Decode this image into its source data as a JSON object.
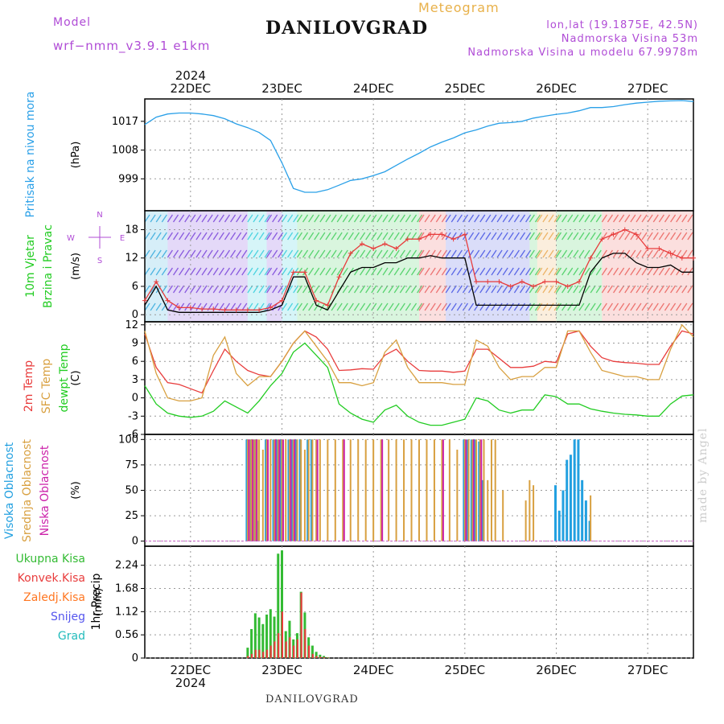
{
  "header": {
    "model_label": "Model",
    "model_name": "wrf−nmm_v3.9.1  e1km",
    "chart_kind": "Meteogram",
    "station": "DANILOVGRAD",
    "lonlat": "lon,lat (19.1875E, 42.5N)",
    "elevation": "Nadmorska Visina 53m",
    "model_elevation": "Nadmorska Visina u modelu 67.9978m",
    "footer_station": "DANILOVGRAD",
    "credit": "made by Angel"
  },
  "colors": {
    "pressure": "#2aa0e8",
    "temp2m": "#e83c3c",
    "sfc": "#d8a040",
    "dewpt": "#22cc22",
    "high_cloud": "#22a0e0",
    "mid_cloud": "#d8a040",
    "low_cloud": "#cc22aa",
    "total_precip": "#33bb33",
    "conv_precip": "#e83c3c",
    "freezing": "#ff7722",
    "snow": "#5555ee",
    "hail": "#22bbbb",
    "title_purple": "#b04cd6"
  },
  "chart_data": [
    {
      "type": "line",
      "id": "pressure",
      "ylabel": "Pritisak na nivou mora",
      "unit": "(hPa)",
      "ylim": [
        989,
        1024
      ],
      "yticks": [
        999,
        1008,
        1017
      ],
      "x": [
        0,
        3,
        6,
        9,
        12,
        15,
        18,
        21,
        24,
        27,
        30,
        33,
        36,
        39,
        42,
        45,
        48,
        51,
        54,
        57,
        60,
        63,
        66,
        69,
        72,
        75,
        78,
        81,
        84,
        87,
        90,
        93,
        96,
        99,
        102,
        105,
        108,
        111,
        114,
        117,
        120,
        123,
        126,
        129,
        132,
        135,
        138,
        141,
        144
      ],
      "series": [
        {
          "values": [
            1016,
            1018.3,
            1019.3,
            1019.6,
            1019.6,
            1019.3,
            1018.8,
            1017.8,
            1016.2,
            1015,
            1013.5,
            1011,
            1004,
            996,
            994.8,
            994.8,
            995.6,
            997,
            998.5,
            999,
            1000,
            1001.2,
            1003.2,
            1005.2,
            1007,
            1009,
            1010.5,
            1011.8,
            1013.4,
            1014.3,
            1015.5,
            1016.4,
            1016.6,
            1017,
            1018,
            1018.6,
            1019.2,
            1019.6,
            1020.3,
            1021.3,
            1021.3,
            1021.6,
            1022.2,
            1022.7,
            1023,
            1023.3,
            1023.4,
            1023.5,
            1023.2
          ]
        }
      ]
    },
    {
      "type": "line",
      "id": "wind",
      "ylabel": [
        "10m Vjetar",
        "Brzina i Pravac"
      ],
      "unit": "(m/s)",
      "compass": [
        "N",
        "E",
        "S",
        "W"
      ],
      "ylim": [
        -1.5,
        22
      ],
      "yticks": [
        0,
        6,
        12,
        18
      ],
      "x": [
        0,
        3,
        6,
        9,
        12,
        15,
        18,
        21,
        24,
        27,
        30,
        33,
        36,
        39,
        42,
        45,
        48,
        51,
        54,
        57,
        60,
        63,
        66,
        69,
        72,
        75,
        78,
        81,
        84,
        87,
        90,
        93,
        96,
        99,
        102,
        105,
        108,
        111,
        114,
        117,
        120,
        123,
        126,
        129,
        132,
        135,
        138,
        141,
        144
      ],
      "series": [
        {
          "values": [
            2,
            6,
            1,
            0.5,
            0.5,
            0.5,
            0.5,
            0.5,
            0.5,
            0.5,
            0.5,
            1,
            2,
            8,
            8,
            2,
            1,
            5,
            9,
            10,
            10,
            11,
            11,
            12,
            12,
            12.5,
            12,
            12,
            12,
            2,
            2,
            2,
            2,
            2,
            2,
            2,
            2,
            2,
            2,
            9,
            12,
            13,
            13,
            11,
            10,
            10,
            10.5,
            9,
            9
          ]
        },
        {
          "values": [
            3,
            7,
            3,
            1.5,
            1.5,
            1.2,
            1.2,
            1,
            1,
            1,
            1,
            1.5,
            3,
            9,
            9,
            3,
            2,
            8,
            13,
            15,
            14,
            15,
            14,
            16,
            16,
            17,
            17,
            16,
            17,
            7,
            7,
            7,
            6,
            7,
            6,
            7,
            7,
            6,
            7,
            12,
            16,
            17,
            18,
            17,
            14,
            14,
            13,
            12,
            12
          ]
        }
      ]
    },
    {
      "type": "line",
      "id": "temperature",
      "ylabel": [
        "2m Temp",
        "SFC Temp",
        "dewpt Temp"
      ],
      "unit": "(C)",
      "ylim": [
        -6,
        12.5
      ],
      "yticks": [
        -6,
        -3,
        0,
        3,
        6,
        9,
        12
      ],
      "x": [
        0,
        3,
        6,
        9,
        12,
        15,
        18,
        21,
        24,
        27,
        30,
        33,
        36,
        39,
        42,
        45,
        48,
        51,
        54,
        57,
        60,
        63,
        66,
        69,
        72,
        75,
        78,
        81,
        84,
        87,
        90,
        93,
        96,
        99,
        102,
        105,
        108,
        111,
        114,
        117,
        120,
        123,
        126,
        129,
        132,
        135,
        138,
        141,
        144
      ],
      "series": [
        {
          "name": "2m Temp",
          "values": [
            10.5,
            5,
            2.5,
            2.2,
            1.5,
            0.8,
            4.5,
            8,
            6,
            4.5,
            3.8,
            3.5,
            6,
            9,
            11,
            10,
            8,
            4.5,
            4.6,
            4.8,
            4.7,
            7,
            8,
            6,
            4.5,
            4.4,
            4.4,
            4.2,
            4.4,
            8,
            8,
            6.5,
            5,
            5,
            5.2,
            6,
            5.8,
            10.5,
            11,
            8.5,
            6.6,
            6,
            5.8,
            5.7,
            5.5,
            5.5,
            8.5,
            11,
            10.5
          ]
        },
        {
          "name": "SFC Temp",
          "values": [
            11,
            4,
            0,
            -0.5,
            -0.5,
            0,
            7,
            10,
            4,
            2,
            3.5,
            3.5,
            6,
            9,
            11,
            8.5,
            6,
            2.5,
            2.5,
            2,
            2.5,
            7.5,
            9.5,
            5,
            2.5,
            2.5,
            2.5,
            2.2,
            2.2,
            9.5,
            8.5,
            5,
            3,
            3.5,
            3.5,
            5,
            5,
            11,
            11,
            7.5,
            4.5,
            4,
            3.5,
            3.5,
            3,
            3,
            8,
            12,
            10
          ]
        },
        {
          "name": "dewpt Temp",
          "values": [
            2,
            -1,
            -2.5,
            -3,
            -3.2,
            -3,
            -2.2,
            -0.5,
            -1.5,
            -2.5,
            -0.5,
            2,
            4,
            7.5,
            9,
            7,
            5,
            -1,
            -2.5,
            -3.5,
            -4,
            -2,
            -1.2,
            -3,
            -4,
            -4.5,
            -4.5,
            -4,
            -3.5,
            0,
            -0.5,
            -2,
            -2.5,
            -2,
            -2,
            0.5,
            0.2,
            -1,
            -1,
            -1.8,
            -2.2,
            -2.5,
            -2.7,
            -2.8,
            -3,
            -3,
            -1,
            0.3,
            0.5
          ]
        }
      ]
    },
    {
      "type": "bar",
      "id": "clouds",
      "ylabel": [
        "Visoka Oblacnost",
        "Srednja Oblacnost",
        "Niska Oblacnost"
      ],
      "unit": "(%)",
      "ylim": [
        -5,
        105
      ],
      "yticks": [
        0,
        25,
        50,
        75,
        100
      ],
      "x": [
        27,
        27.5,
        28,
        28.5,
        29,
        29.5,
        30,
        31,
        32,
        33,
        34,
        35,
        36,
        37,
        38,
        39,
        40,
        41,
        42,
        43,
        44,
        45,
        46,
        48,
        50,
        52,
        54,
        56,
        58,
        60,
        62,
        64,
        66,
        68,
        70,
        72,
        74,
        76,
        78,
        80,
        82,
        84,
        85,
        86,
        87,
        88,
        89,
        90,
        91,
        92,
        94,
        100,
        101,
        102,
        108,
        109,
        110,
        111,
        112,
        113,
        114,
        115,
        116,
        117,
        120
      ],
      "series": [
        {
          "name": "Visoka Oblacnost",
          "values": [
            100,
            100,
            100,
            98,
            100,
            100,
            20,
            0,
            100,
            0,
            100,
            100,
            100,
            0,
            100,
            100,
            100,
            100,
            0,
            100,
            100,
            0,
            0,
            0,
            0,
            0,
            0,
            0,
            0,
            0,
            0,
            0,
            0,
            0,
            0,
            0,
            0,
            0,
            0,
            0,
            0,
            100,
            100,
            100,
            100,
            98,
            60,
            0,
            0,
            0,
            0,
            0,
            0,
            0,
            55,
            30,
            50,
            80,
            85,
            100,
            100,
            60,
            40,
            20,
            0
          ]
        },
        {
          "name": "Srednja Oblacnost",
          "values": [
            100,
            100,
            100,
            100,
            100,
            100,
            100,
            90,
            100,
            100,
            100,
            100,
            100,
            100,
            100,
            100,
            100,
            100,
            90,
            100,
            100,
            100,
            100,
            100,
            100,
            100,
            100,
            100,
            100,
            100,
            100,
            100,
            100,
            100,
            100,
            100,
            100,
            100,
            100,
            100,
            90,
            100,
            100,
            100,
            100,
            100,
            100,
            60,
            100,
            100,
            50,
            40,
            60,
            55,
            0,
            0,
            0,
            0,
            0,
            0,
            0,
            0,
            0,
            45,
            0
          ]
        },
        {
          "name": "Niska Oblacnost",
          "values": [
            100,
            0,
            100,
            0,
            100,
            0,
            0,
            0,
            100,
            0,
            100,
            100,
            100,
            0,
            100,
            100,
            0,
            0,
            0,
            0,
            0,
            100,
            0,
            0,
            0,
            100,
            0,
            0,
            0,
            0,
            100,
            0,
            0,
            0,
            0,
            0,
            0,
            0,
            100,
            0,
            0,
            100,
            0,
            100,
            0,
            100,
            0,
            0,
            0,
            0,
            0,
            0,
            0,
            0,
            0,
            0,
            0,
            0,
            0,
            0,
            0,
            0,
            0,
            0,
            0
          ]
        }
      ]
    },
    {
      "type": "bar",
      "id": "precip",
      "ylabel": "1hr Precip",
      "unit": "(mm)",
      "legend": [
        "Ukupna Kisa",
        "Konvek.Kisa",
        "Zaledj.Kisa",
        "Snijeg",
        "Grad"
      ],
      "ylim": [
        0,
        2.7
      ],
      "yticks": [
        0,
        0.56,
        1.12,
        1.68,
        2.24
      ],
      "x": [
        27,
        28,
        29,
        30,
        31,
        32,
        33,
        34,
        35,
        36,
        37,
        38,
        39,
        40,
        41,
        42,
        43,
        44,
        45,
        46,
        47,
        48
      ],
      "series": [
        {
          "name": "Ukupna Kisa",
          "values": [
            0.25,
            0.7,
            1.08,
            0.98,
            0.82,
            1.05,
            1.18,
            1.0,
            2.52,
            2.6,
            0.65,
            0.9,
            0.45,
            0.6,
            1.6,
            1.1,
            0.5,
            0.3,
            0.15,
            0.08,
            0.05,
            0.02
          ]
        },
        {
          "name": "Konvek.Kisa",
          "values": [
            0.05,
            0.1,
            0.2,
            0.2,
            0.15,
            0.2,
            0.3,
            0.4,
            0.6,
            1.12,
            0.4,
            0.5,
            0.3,
            0.45,
            1.58,
            0.7,
            0.3,
            0.1,
            0.05,
            0.03,
            0.02,
            0.01
          ]
        }
      ]
    }
  ],
  "axis": {
    "year": "2024",
    "days": [
      "22DEC",
      "23DEC",
      "24DEC",
      "25DEC",
      "26DEC",
      "27DEC"
    ],
    "day_hours": [
      12,
      36,
      60,
      84,
      108,
      132
    ],
    "x_range": [
      0,
      144
    ]
  }
}
